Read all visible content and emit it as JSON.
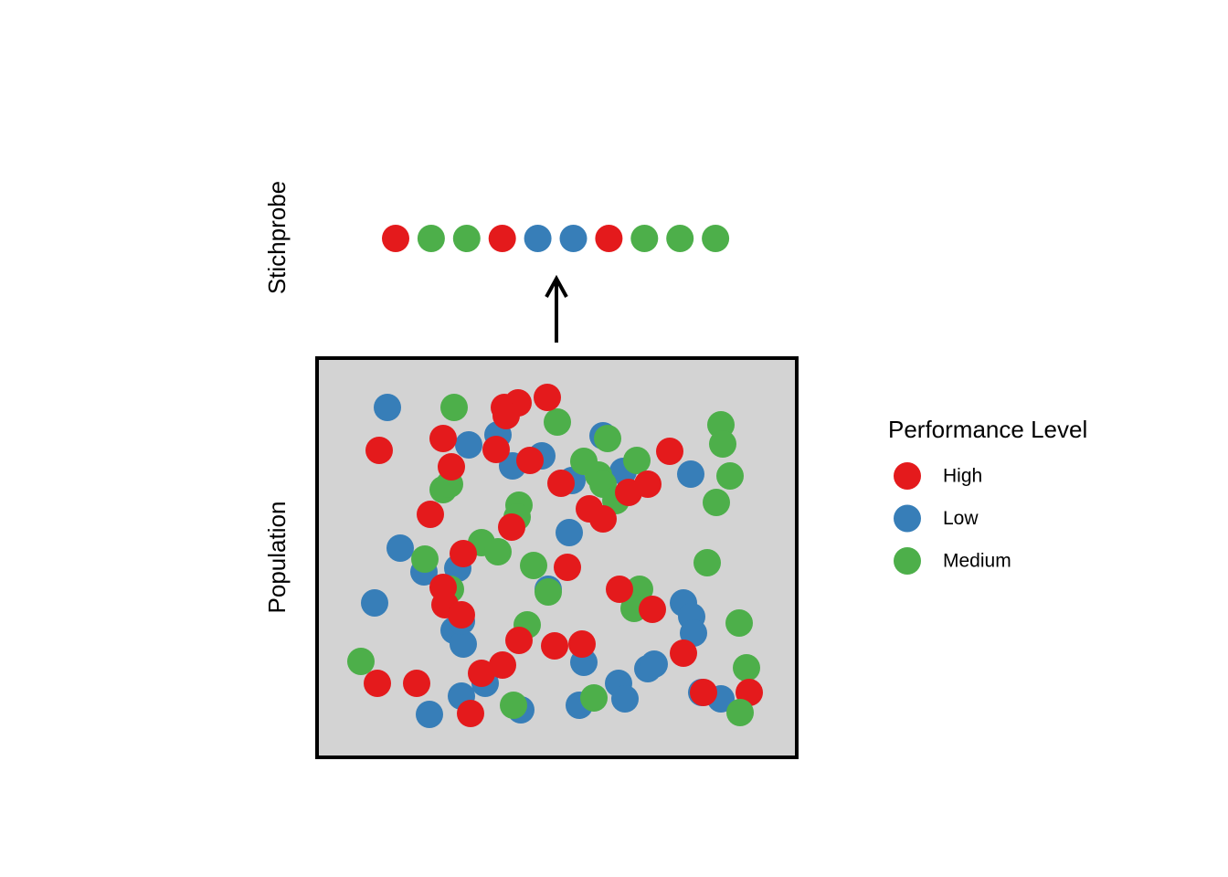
{
  "labels": {
    "sample": "Stichprobe",
    "population": "Population"
  },
  "legend": {
    "title": "Performance Level",
    "items": [
      {
        "label": "High",
        "color": "#e41a1c"
      },
      {
        "label": "Low",
        "color": "#377eb8"
      },
      {
        "label": "Medium",
        "color": "#4daf4a"
      }
    ]
  }
}
